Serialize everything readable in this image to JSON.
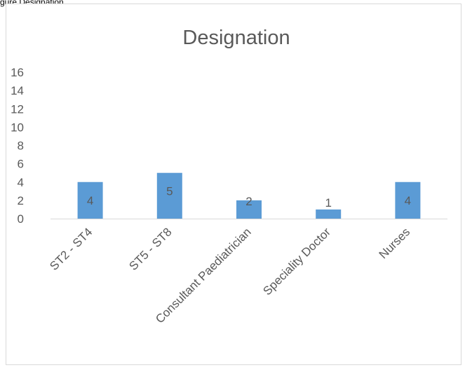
{
  "page": {
    "caption_fragment": "gure Designation"
  },
  "chart_data": {
    "type": "bar",
    "title": "Designation",
    "categories": [
      "ST2 - ST4",
      "ST5 - ST8",
      "Consultant Paediatrician",
      "Speciality Doctor",
      "Nurses"
    ],
    "values": [
      4,
      5,
      2,
      1,
      4
    ],
    "data_labels": [
      "4",
      "5",
      "2",
      "1",
      "4"
    ],
    "ylim": [
      0,
      16
    ],
    "yticks": [
      0,
      2,
      4,
      6,
      8,
      10,
      12,
      14,
      16
    ],
    "ytick_labels": [
      "0",
      "2",
      "4",
      "6",
      "8",
      "10",
      "12",
      "14",
      "16"
    ],
    "xlabel": "",
    "ylabel": "",
    "grid": false,
    "legend": "none",
    "colors": {
      "bar": "#5b9bd5",
      "axis": "#d9d9d9",
      "text": "#595959",
      "title": "#595959"
    }
  }
}
